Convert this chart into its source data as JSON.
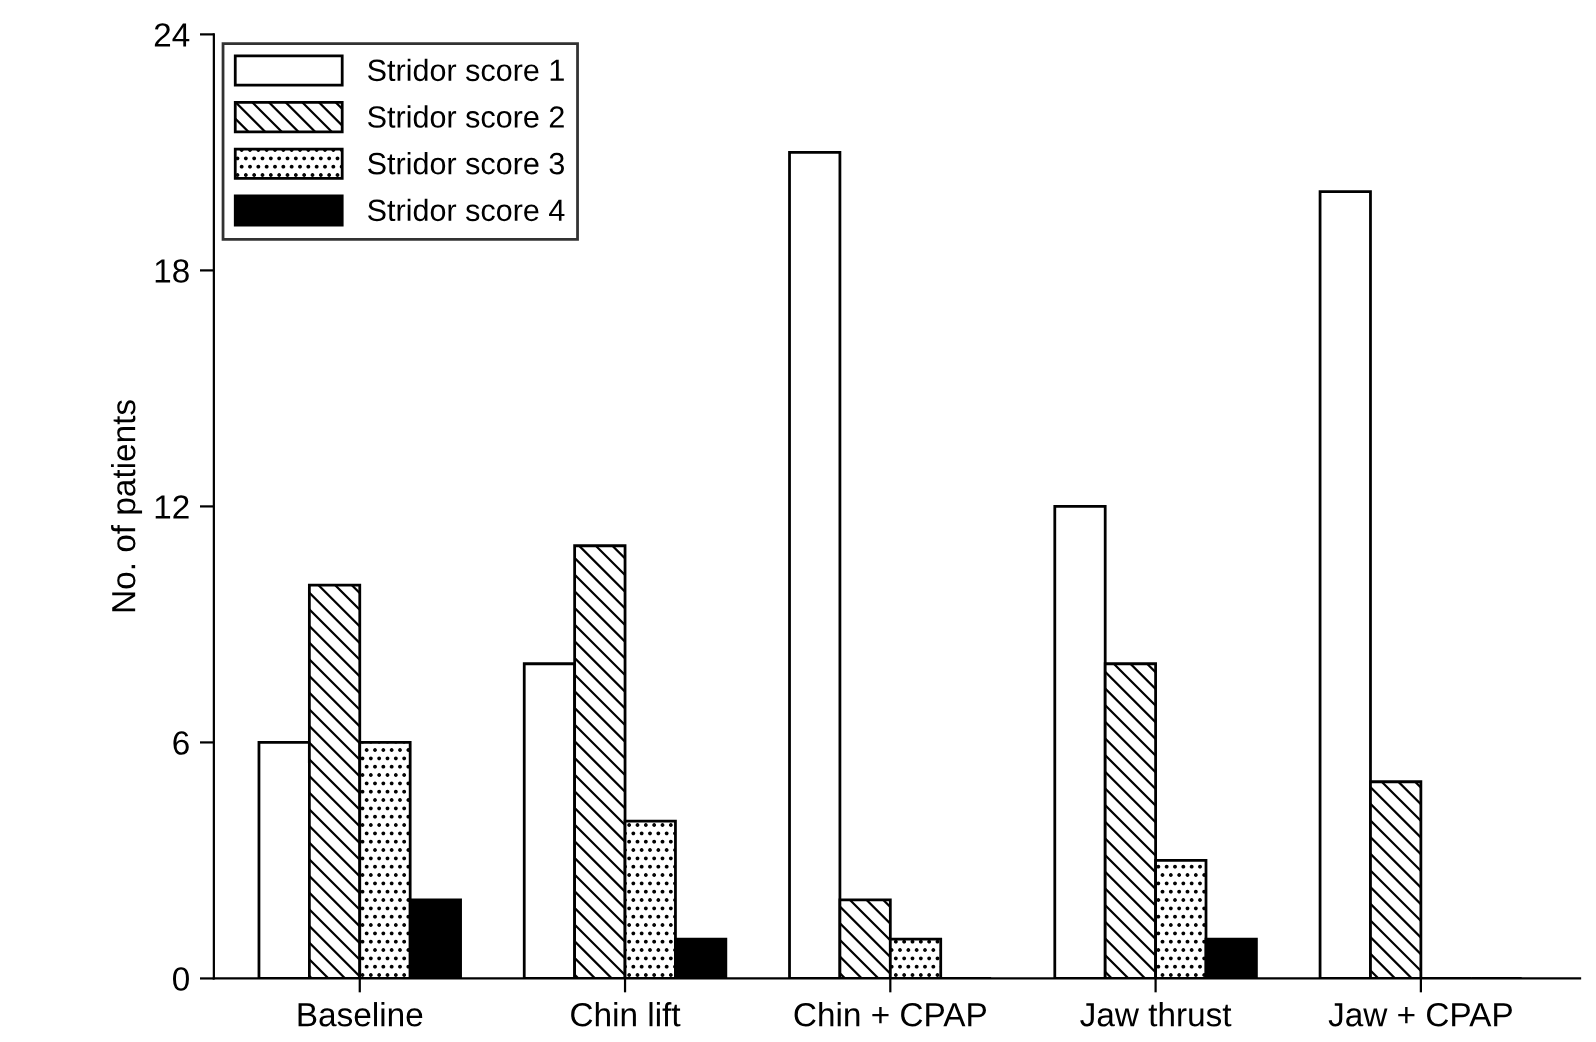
{
  "chart_data": {
    "type": "bar",
    "ylabel": "No. of patients",
    "categories": [
      "Baseline",
      "Chin lift",
      "Chin + CPAP",
      "Jaw thrust",
      "Jaw + CPAP"
    ],
    "series": [
      {
        "name": "Stridor score 1",
        "color": "#ffffff",
        "values": [
          6,
          8,
          21,
          12,
          20
        ]
      },
      {
        "name": "Stridor score 2",
        "color": "#000000",
        "values": [
          10,
          11,
          2,
          8,
          5
        ]
      },
      {
        "name": "Stridor score 3",
        "color": "#000000",
        "values": [
          6,
          4,
          1,
          3,
          0
        ]
      },
      {
        "name": "Stridor score 4",
        "color": "#000000",
        "values": [
          2,
          1,
          0,
          1,
          0
        ]
      }
    ],
    "ylim": [
      0,
      24
    ],
    "yticks": [
      0,
      6,
      12,
      18,
      24
    ],
    "grid": false,
    "legend": "top left"
  }
}
